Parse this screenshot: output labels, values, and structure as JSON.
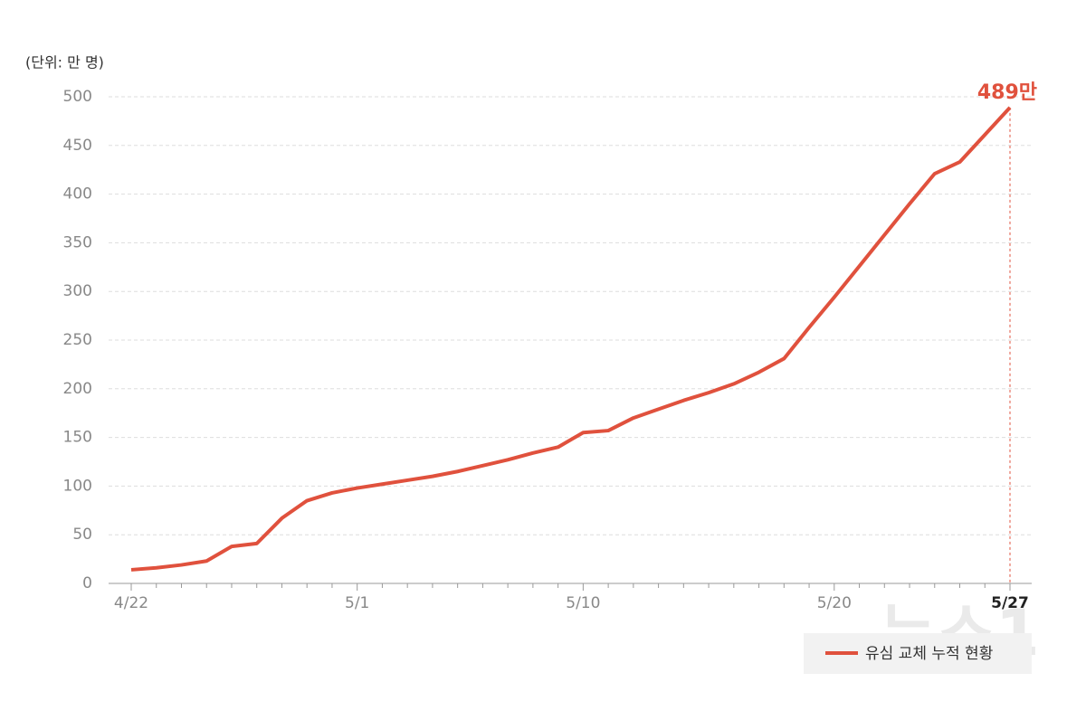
{
  "chart_data": {
    "type": "line",
    "unit_label": "(단위: 만 명)",
    "categories": [
      "4/22",
      null,
      null,
      null,
      null,
      null,
      null,
      null,
      null,
      "5/1",
      null,
      null,
      null,
      null,
      null,
      null,
      null,
      null,
      "5/10",
      null,
      null,
      null,
      null,
      null,
      null,
      null,
      null,
      null,
      "5/20",
      null,
      null,
      null,
      null,
      null,
      null,
      "5/27"
    ],
    "series": [
      {
        "name": "유심 교체 누적 현황",
        "color": "#e0513d",
        "values": [
          14,
          16,
          19,
          23,
          38,
          41,
          67,
          85,
          93,
          98,
          102,
          106,
          110,
          115,
          121,
          127,
          134,
          140,
          155,
          157,
          170,
          179,
          188,
          196,
          205,
          217,
          231,
          263,
          294,
          326,
          358,
          390,
          421,
          433,
          461,
          489
        ],
        "value_labels": [
          null,
          null,
          null,
          null,
          null,
          null,
          null,
          null,
          null,
          null,
          null,
          null,
          null,
          null,
          null,
          null,
          null,
          null,
          null,
          null,
          null,
          null,
          null,
          null,
          null,
          null,
          null,
          null,
          null,
          null,
          null,
          null,
          null,
          null,
          null,
          "489만"
        ]
      }
    ],
    "ylim": [
      0,
      500
    ],
    "yticks": [
      0,
      50,
      100,
      150,
      200,
      250,
      300,
      350,
      400,
      450,
      500
    ],
    "grid": true,
    "legend": "bottom-right",
    "watermark": "뉴스1"
  }
}
